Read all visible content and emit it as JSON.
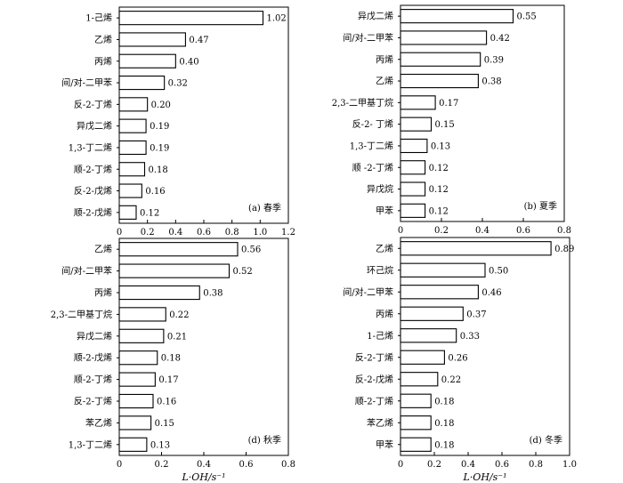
{
  "chart_data": [
    {
      "type": "bar",
      "orientation": "horizontal",
      "label": "(a) 春季",
      "categories": [
        "1-己烯",
        "乙烯",
        "丙烯",
        "间/对-二甲苯",
        "反-2-丁烯",
        "异戊二烯",
        "1,3-丁二烯",
        "顺-2-丁烯",
        "反-2-戊烯",
        "顺-2-戊烯"
      ],
      "values": [
        1.02,
        0.47,
        0.4,
        0.32,
        0.2,
        0.19,
        0.19,
        0.18,
        0.16,
        0.12
      ],
      "value_labels": [
        "1.02",
        "0.47",
        "0.40",
        "0.32",
        "0.20",
        "0.19",
        "0.19",
        "0.18",
        "0.16",
        "0.12"
      ],
      "xlim": [
        0,
        1.2
      ],
      "xticks": [
        "0",
        "0.2",
        "0.4",
        "0.6",
        "0.8",
        "1.0",
        "1.2"
      ],
      "xticks_values": [
        0,
        0.2,
        0.4,
        0.6,
        0.8,
        1.0,
        1.2
      ],
      "xlabel": ""
    },
    {
      "type": "bar",
      "orientation": "horizontal",
      "label": "(b) 夏季",
      "categories": [
        "异戊二烯",
        "间/对-二甲苯",
        "丙烯",
        "乙烯",
        "2,3-二甲基丁烷",
        "反-2- 丁烯",
        "1,3-丁二烯",
        "顺 -2-丁烯",
        "异戊烷",
        "甲苯"
      ],
      "values": [
        0.55,
        0.42,
        0.39,
        0.38,
        0.17,
        0.15,
        0.13,
        0.12,
        0.12,
        0.12
      ],
      "value_labels": [
        "0.55",
        "0.42",
        "0.39",
        "0.38",
        "0.17",
        "0.15",
        "0.13",
        "0.12",
        "0.12",
        "0.12"
      ],
      "xlim": [
        0,
        0.8
      ],
      "xticks": [
        "0",
        "0.2",
        "0.4",
        "0.6",
        "0.8"
      ],
      "xticks_values": [
        0,
        0.2,
        0.4,
        0.6,
        0.8
      ],
      "xlabel": ""
    },
    {
      "type": "bar",
      "orientation": "horizontal",
      "label": "(d) 秋季",
      "categories": [
        "乙烯",
        "间/对-二甲苯",
        "丙烯",
        "2,3-二甲基丁烷",
        "异戊二烯",
        "顺-2-戊烯",
        "顺-2-丁烯",
        "反-2-丁烯",
        "苯乙烯",
        "1,3-丁二烯"
      ],
      "values": [
        0.56,
        0.52,
        0.38,
        0.22,
        0.21,
        0.18,
        0.17,
        0.16,
        0.15,
        0.13
      ],
      "value_labels": [
        "0.56",
        "0.52",
        "0.38",
        "0.22",
        "0.21",
        "0.18",
        "0.17",
        "0.16",
        "0.15",
        "0.13"
      ],
      "xlim": [
        0,
        0.8
      ],
      "xticks": [
        "0",
        "0.2",
        "0.4",
        "0.6",
        "0.8"
      ],
      "xticks_values": [
        0,
        0.2,
        0.4,
        0.6,
        0.8
      ],
      "xlabel": "L·OH/s⁻¹"
    },
    {
      "type": "bar",
      "orientation": "horizontal",
      "label": "(d) 冬季",
      "categories": [
        "乙烯",
        "环己烷",
        "间/对-二甲苯",
        "丙烯",
        "1-己烯",
        "反-2-丁烯",
        "反-2-戊烯",
        "顺-2-丁烯",
        "苯乙烯",
        "甲苯"
      ],
      "values": [
        0.89,
        0.5,
        0.46,
        0.37,
        0.33,
        0.26,
        0.22,
        0.18,
        0.18,
        0.18
      ],
      "value_labels": [
        "0.89",
        "0.50",
        "0.46",
        "0.37",
        "0.33",
        "0.26",
        "0.22",
        "0.18",
        "0.18",
        "0.18"
      ],
      "xlim": [
        0,
        1.0
      ],
      "xticks": [
        "0",
        "0.2",
        "0.4",
        "0.6",
        "0.8",
        "1.0"
      ],
      "xticks_values": [
        0,
        0.2,
        0.4,
        0.6,
        0.8,
        1.0
      ],
      "xlabel": "L·OH/s⁻¹"
    }
  ]
}
